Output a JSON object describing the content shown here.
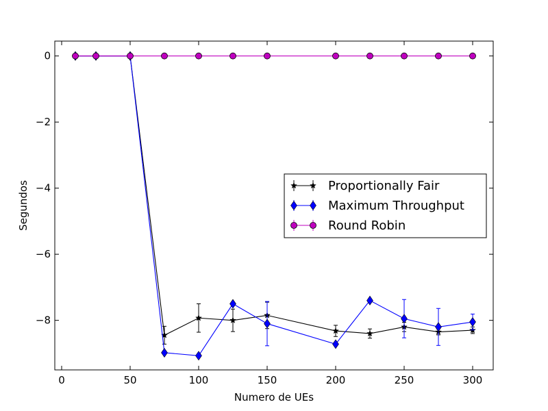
{
  "chart_data": {
    "type": "line",
    "title": "",
    "xlabel": "Numero de UEs",
    "ylabel": "Segundos",
    "xlim": [
      -5,
      315
    ],
    "ylim": [
      -9.5,
      0.45
    ],
    "xticks": [
      0,
      50,
      100,
      150,
      200,
      250,
      300
    ],
    "yticks": [
      0,
      -2,
      -4,
      -6,
      -8
    ],
    "ytick_labels": [
      "0",
      "−2",
      "−4",
      "−6",
      "−8"
    ],
    "grid": false,
    "legend_position": "center-right",
    "series": [
      {
        "name": "Proportionally Fair",
        "color": "#000000",
        "marker": "star",
        "points": [
          {
            "x": 10,
            "y": 0.0,
            "err": 0.0
          },
          {
            "x": 25,
            "y": 0.0,
            "err": 0.0
          },
          {
            "x": 50,
            "y": 0.0,
            "err": 0.0
          },
          {
            "x": 75,
            "y": -8.45,
            "err": 0.27
          },
          {
            "x": 100,
            "y": -7.93,
            "err": 0.43
          },
          {
            "x": 125,
            "y": -8.0,
            "err": 0.34
          },
          {
            "x": 150,
            "y": -7.85,
            "err": 0.4
          },
          {
            "x": 200,
            "y": -8.32,
            "err": 0.17
          },
          {
            "x": 225,
            "y": -8.4,
            "err": 0.14
          },
          {
            "x": 250,
            "y": -8.2,
            "err": 0.14
          },
          {
            "x": 275,
            "y": -8.35,
            "err": 0.09
          },
          {
            "x": 300,
            "y": -8.3,
            "err": 0.1
          }
        ]
      },
      {
        "name": "Maximum Throughput",
        "color": "#0000ff",
        "marker": "diamond",
        "points": [
          {
            "x": 10,
            "y": 0.0,
            "err": 0.0
          },
          {
            "x": 25,
            "y": 0.0,
            "err": 0.0
          },
          {
            "x": 50,
            "y": 0.0,
            "err": 0.0
          },
          {
            "x": 75,
            "y": -8.98,
            "err": 0.0
          },
          {
            "x": 100,
            "y": -9.07,
            "err": 0.0
          },
          {
            "x": 125,
            "y": -7.5,
            "err": 0.0
          },
          {
            "x": 150,
            "y": -8.1,
            "err": 0.67
          },
          {
            "x": 200,
            "y": -8.72,
            "err": 0.0
          },
          {
            "x": 225,
            "y": -7.4,
            "err": 0.0
          },
          {
            "x": 250,
            "y": -7.95,
            "err": 0.58
          },
          {
            "x": 275,
            "y": -8.2,
            "err": 0.56
          },
          {
            "x": 300,
            "y": -8.05,
            "err": 0.24
          }
        ]
      },
      {
        "name": "Round Robin",
        "color": "#bf00bf",
        "marker": "circle",
        "points": [
          {
            "x": 10,
            "y": 0.0,
            "err": 0.0
          },
          {
            "x": 25,
            "y": 0.0,
            "err": 0.0
          },
          {
            "x": 50,
            "y": 0.0,
            "err": 0.0
          },
          {
            "x": 75,
            "y": 0.0,
            "err": 0.0
          },
          {
            "x": 100,
            "y": 0.0,
            "err": 0.0
          },
          {
            "x": 125,
            "y": 0.0,
            "err": 0.0
          },
          {
            "x": 150,
            "y": 0.0,
            "err": 0.0
          },
          {
            "x": 200,
            "y": 0.0,
            "err": 0.0
          },
          {
            "x": 225,
            "y": 0.0,
            "err": 0.0
          },
          {
            "x": 250,
            "y": 0.0,
            "err": 0.0
          },
          {
            "x": 275,
            "y": 0.0,
            "err": 0.0
          },
          {
            "x": 300,
            "y": 0.0,
            "err": 0.0
          }
        ]
      }
    ]
  }
}
